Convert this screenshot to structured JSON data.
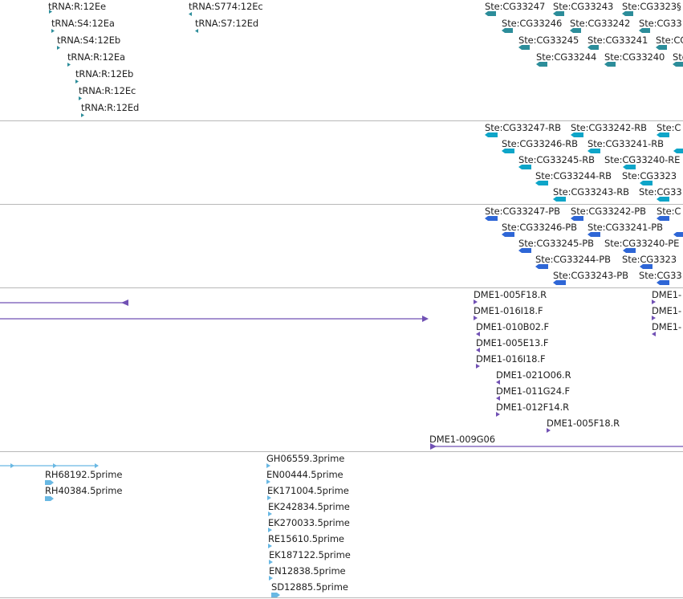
{
  "colors": {
    "trna": "#2c8d9a",
    "ste_gene": "#2c8d9a",
    "transcript": "#0ea5c8",
    "protein": "#2e66d6",
    "clone": "#7151b4",
    "est": "#69b8e3",
    "divider": "#b8b8b8"
  },
  "tracks": {
    "trna": {
      "labels": [
        "tRNA:R:12Ee",
        "tRNA:S4:12Ea",
        "tRNA:S4:12Eb",
        "tRNA:R:12Ea",
        "tRNA:R:12Eb",
        "tRNA:R:12Ec",
        "tRNA:R:12Ed",
        "tRNA:S774:12Ec",
        "tRNA:S7:12Ed"
      ]
    },
    "genes": {
      "labels": [
        "Ste:CG33247",
        "Ste:CG33243",
        "Ste:CG3323§",
        "Ste:CG33246",
        "Ste:CG33242",
        "Ste:CG33",
        "Ste:CG33245",
        "Ste:CG33241",
        "Ste:CG3",
        "Ste:CG33244",
        "Ste:CG33240",
        "Ste:C"
      ]
    },
    "transcripts": {
      "labels": [
        "Ste:CG33247-RB",
        "Ste:CG33242-RB",
        "Ste:C",
        "Ste:CG33246-RB",
        "Ste:CG33241-RB",
        "Ste:CG33245-RB",
        "Ste:CG33240-RE",
        "Ste:CG33244-RB",
        "Ste:CG3323",
        "Ste:CG33243-RB",
        "Ste:CG33"
      ]
    },
    "proteins": {
      "labels": [
        "Ste:CG33247-PB",
        "Ste:CG33242-PB",
        "Ste:C",
        "Ste:CG33246-PB",
        "Ste:CG33241-PB",
        "Ste:CG33245-PB",
        "Ste:CG33240-PE",
        "Ste:CG33244-PB",
        "Ste:CG3323",
        "Ste:CG33243-PB",
        "Ste:CG33"
      ]
    },
    "clones": {
      "labels": [
        "DME1-005F18.R",
        "DME1-016I18.F",
        "DME1-010B02.F",
        "DME1-005E13.F",
        "DME1-016I18.F",
        "DME1-021O06.R",
        "DME1-011G24.F",
        "DME1-012F14.R",
        "DME1-005F18.R",
        "DME1-009G06",
        "DME1-",
        "DME1-",
        "DME1-"
      ]
    },
    "ests": {
      "labels": [
        "RH68192.5prime",
        "RH40384.5prime",
        "GH06559.3prime",
        "EN00444.5prime",
        "EK171004.5prime",
        "EK242834.5prime",
        "EK270033.5prime",
        "RE15610.5prime",
        "EK187122.5prime",
        "EN12838.5prime",
        "SD12885.5prime"
      ]
    }
  }
}
